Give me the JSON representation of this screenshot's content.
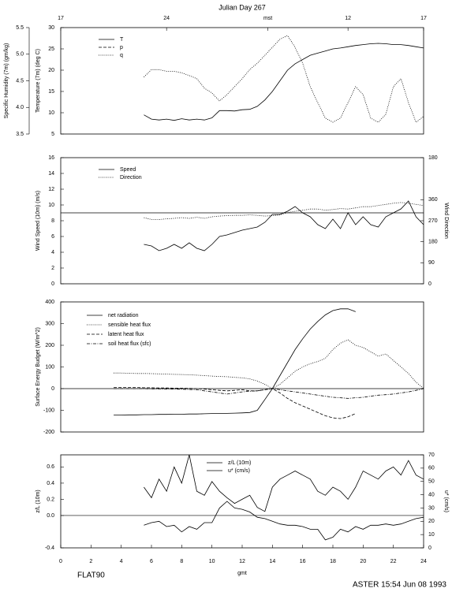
{
  "title": "Julian Day 267",
  "footer": {
    "left": "FLAT90",
    "right": "ASTER 15:54 Jun 08 1993"
  },
  "chart_data": [
    {
      "type": "line",
      "ylabel": "Temperature (7m) (deg C)",
      "y2label": "Specific Humidity (7m) (gm/kg)",
      "xlim": [
        0,
        24
      ],
      "x2ticks": [
        {
          "value": 0,
          "label": "17"
        },
        {
          "value": 7,
          "label": "24"
        },
        {
          "value": 13.7,
          "label": "mst"
        },
        {
          "value": 19,
          "label": "12"
        },
        {
          "value": 24,
          "label": "17"
        }
      ],
      "ylim": [
        5,
        30
      ],
      "yticks": [
        5,
        10,
        15,
        20,
        25,
        30
      ],
      "y2lim": [
        3.5,
        5.5
      ],
      "y2ticks": [
        3.5,
        {
          "value": 4,
          "label": "4.0"
        },
        4.5,
        {
          "value": 5,
          "label": "5.0"
        },
        5.5
      ],
      "x": [
        5.5,
        6,
        6.5,
        7,
        7.5,
        8,
        8.5,
        9,
        9.5,
        10,
        10.5,
        11,
        11.5,
        12,
        12.5,
        13,
        13.5,
        14,
        14.5,
        15,
        15.5,
        16,
        16.5,
        17,
        17.5,
        18,
        18.5,
        19,
        19.5,
        20,
        20.5,
        21,
        21.5,
        22,
        22.5,
        23,
        23.5,
        24
      ],
      "series": [
        {
          "name": "T",
          "color": "#000000",
          "dash": "solid",
          "axis": "y",
          "values": [
            9.5,
            8.5,
            8.3,
            8.5,
            8.2,
            8.6,
            8.3,
            8.5,
            8.3,
            8.8,
            10.5,
            10.5,
            10.4,
            10.7,
            10.8,
            11.5,
            13,
            15,
            17.5,
            20,
            21.5,
            22.5,
            23.5,
            24,
            24.5,
            25,
            25.2,
            25.5,
            25.8,
            26,
            26.2,
            26.3,
            26.2,
            26,
            26,
            25.8,
            25.5,
            25.2
          ]
        },
        {
          "name": "p",
          "color": "#000000",
          "dash": "dashed",
          "axis": "y",
          "values": [
            null,
            null,
            null,
            null,
            null,
            null,
            null,
            null,
            null,
            null,
            null,
            null,
            null,
            null,
            null,
            null,
            null,
            null,
            null,
            null,
            null,
            null,
            null,
            null,
            null,
            null,
            null,
            null,
            null,
            null,
            null,
            null,
            null,
            null,
            null,
            null,
            null,
            null
          ]
        },
        {
          "name": "q",
          "color": "#000000",
          "dash": "dotted",
          "axis": "y2",
          "values": [
            4.57,
            4.71,
            4.71,
            4.68,
            4.68,
            4.65,
            4.6,
            4.54,
            4.36,
            4.27,
            4.12,
            4.24,
            4.39,
            4.54,
            4.71,
            4.83,
            4.98,
            5.13,
            5.28,
            5.35,
            5.13,
            4.83,
            4.39,
            4.09,
            3.8,
            3.72,
            3.8,
            4.09,
            4.39,
            4.24,
            3.8,
            3.72,
            3.87,
            4.39,
            4.54,
            4.09,
            3.72,
            3.83
          ]
        }
      ]
    },
    {
      "type": "line",
      "ylabel": "Wind Speed (10m) (m/s)",
      "y2label": "Wind Direction",
      "xlim": [
        0,
        24
      ],
      "ylim": [
        0,
        16
      ],
      "yticks": [
        0,
        2,
        4,
        6,
        8,
        10,
        12,
        14,
        16
      ],
      "y2lim": [
        0,
        540
      ],
      "y2ticks": [
        0,
        90,
        180,
        270,
        360,
        {
          "value": 540,
          "label": "180"
        }
      ],
      "hlines": [
        9
      ],
      "x": [
        5.5,
        6,
        6.5,
        7,
        7.5,
        8,
        8.5,
        9,
        9.5,
        10,
        10.5,
        11,
        11.5,
        12,
        12.5,
        13,
        13.5,
        14,
        14.5,
        15,
        15.5,
        16,
        16.5,
        17,
        17.5,
        18,
        18.5,
        19,
        19.5,
        20,
        20.5,
        21,
        21.5,
        22,
        22.5,
        23,
        23.5,
        24
      ],
      "series": [
        {
          "name": "Speed",
          "color": "#000000",
          "dash": "solid",
          "axis": "y",
          "values": [
            5,
            4.8,
            4.2,
            4.5,
            5,
            4.5,
            5.2,
            4.5,
            4.2,
            5,
            6,
            6.2,
            6.5,
            6.8,
            7,
            7.2,
            7.8,
            8.8,
            8.8,
            9.2,
            9.8,
            9,
            8.5,
            7.5,
            7,
            8.2,
            7,
            9,
            7.5,
            8.5,
            7.5,
            7.2,
            8.5,
            9,
            9.5,
            10.5,
            8.5,
            7.5
          ]
        },
        {
          "name": "Direction",
          "color": "#000000",
          "dash": "dotted",
          "axis": "y2",
          "values": [
            283,
            275,
            275,
            278,
            280,
            283,
            280,
            285,
            280,
            287,
            290,
            292,
            293,
            293,
            295,
            293,
            290,
            292,
            295,
            305,
            310,
            315,
            320,
            320,
            315,
            318,
            322,
            320,
            325,
            330,
            330,
            335,
            340,
            345,
            348,
            345,
            340,
            335
          ]
        }
      ]
    },
    {
      "type": "line",
      "ylabel": "Surface Energy Budget (W/m^2)",
      "xlim": [
        0,
        24
      ],
      "ylim": [
        -200,
        400
      ],
      "yticks": [
        -200,
        -100,
        0,
        100,
        200,
        300,
        400
      ],
      "hlines": [
        0
      ],
      "x": [
        3.5,
        4,
        4.5,
        5,
        5.5,
        6,
        6.5,
        7,
        7.5,
        8,
        8.5,
        9,
        9.5,
        10,
        10.5,
        11,
        11.5,
        12,
        12.5,
        13,
        13.5,
        14,
        14.5,
        15,
        15.5,
        16,
        16.5,
        17,
        17.5,
        18,
        18.5,
        19,
        19.5,
        20,
        20.5,
        21,
        21.5,
        22,
        22.5,
        23,
        23.5,
        24
      ],
      "series": [
        {
          "name": "net radiation",
          "color": "#000000",
          "dash": "solid",
          "axis": "y",
          "values": [
            -122,
            -122,
            -121,
            -121,
            -120,
            -120,
            -119,
            -119,
            -118,
            -118,
            -117,
            -117,
            -116,
            -115,
            -115,
            -114,
            -113,
            -112,
            -110,
            -100,
            -50,
            0,
            60,
            120,
            180,
            230,
            275,
            310,
            340,
            360,
            368,
            368,
            355,
            null,
            null,
            null,
            null,
            null,
            null,
            null,
            null,
            null
          ]
        },
        {
          "name": "sensible heat flux",
          "color": "#000000",
          "dash": "dotted",
          "axis": "y",
          "values": [
            72,
            72,
            71,
            70,
            70,
            69,
            68,
            67,
            66,
            65,
            64,
            62,
            60,
            58,
            56,
            55,
            52,
            50,
            45,
            35,
            20,
            0,
            20,
            50,
            80,
            100,
            115,
            125,
            140,
            180,
            210,
            225,
            200,
            190,
            170,
            150,
            160,
            130,
            100,
            70,
            30,
            0
          ]
        },
        {
          "name": "latent heat flux",
          "color": "#000000",
          "dash": "dashed",
          "axis": "y",
          "values": [
            5,
            5,
            5,
            5,
            4,
            4,
            3,
            3,
            2,
            2,
            1,
            0,
            -2,
            -5,
            -8,
            -10,
            -8,
            -5,
            -10,
            -10,
            -5,
            0,
            -20,
            -45,
            -65,
            -80,
            -95,
            -110,
            -125,
            -135,
            -138,
            -130,
            -115,
            null,
            null,
            null,
            null,
            null,
            null,
            null,
            null,
            null
          ]
        },
        {
          "name": "soil heat flux (sfc)",
          "color": "#000000",
          "dash": "dashdot",
          "axis": "y",
          "values": [
            0,
            0,
            0,
            0,
            0,
            -1,
            -1,
            -2,
            -2,
            -3,
            -4,
            -5,
            -10,
            -15,
            -20,
            -25,
            -20,
            -15,
            -12,
            -10,
            -5,
            0,
            -5,
            -10,
            -15,
            -20,
            -25,
            -30,
            -35,
            -40,
            -42,
            -45,
            -42,
            -40,
            -35,
            -30,
            -28,
            -25,
            -20,
            -15,
            -8,
            0
          ]
        }
      ]
    },
    {
      "type": "line",
      "ylabel": "z/L (10m)",
      "y2label": "u* (cm/s)",
      "xlabel": "gmt",
      "xlim": [
        0,
        24
      ],
      "xticks": [
        0,
        2,
        4,
        6,
        8,
        10,
        12,
        14,
        16,
        18,
        20,
        22,
        24
      ],
      "ylim": [
        -0.4,
        0.75
      ],
      "yticks": [
        -0.4,
        {
          "value": 0,
          "label": "0.0"
        },
        0.2,
        0.4,
        0.6
      ],
      "y2lim": [
        0,
        70
      ],
      "y2ticks": [
        0,
        10,
        20,
        30,
        40,
        50,
        60,
        70
      ],
      "hlines": [
        0
      ],
      "x": [
        5.5,
        6,
        6.5,
        7,
        7.5,
        8,
        8.5,
        9,
        9.5,
        10,
        10.5,
        11,
        11.5,
        12,
        12.5,
        13,
        13.5,
        14,
        14.5,
        15,
        15.5,
        16,
        16.5,
        17,
        17.5,
        18,
        18.5,
        19,
        19.5,
        20,
        20.5,
        21,
        21.5,
        22,
        22.5,
        23,
        23.5,
        24
      ],
      "series": [
        {
          "name": "z/L (10m)",
          "color": "#000000",
          "dash": "solid",
          "axis": "y",
          "values": [
            0.35,
            0.22,
            0.45,
            0.3,
            0.6,
            0.4,
            0.75,
            0.3,
            0.25,
            0.42,
            0.3,
            0.22,
            0.15,
            0.2,
            0.25,
            0.1,
            0.05,
            0.35,
            0.45,
            0.5,
            0.55,
            0.5,
            0.45,
            0.3,
            0.25,
            0.35,
            0.3,
            0.2,
            0.35,
            0.55,
            0.5,
            0.45,
            0.55,
            0.6,
            0.5,
            0.68,
            0.5,
            0.45
          ]
        },
        {
          "name": "u* (cm/s)",
          "color": "#000000",
          "dash": "solid",
          "axis": "y2",
          "values": [
            17,
            19,
            20,
            16,
            17,
            12,
            16,
            14,
            19,
            19,
            30,
            35,
            30,
            29,
            27,
            23,
            22,
            20,
            18,
            17,
            17,
            16,
            14,
            14,
            6,
            8,
            14,
            12,
            16,
            14,
            17,
            17,
            18,
            17,
            18,
            20,
            22,
            23
          ]
        }
      ]
    }
  ]
}
